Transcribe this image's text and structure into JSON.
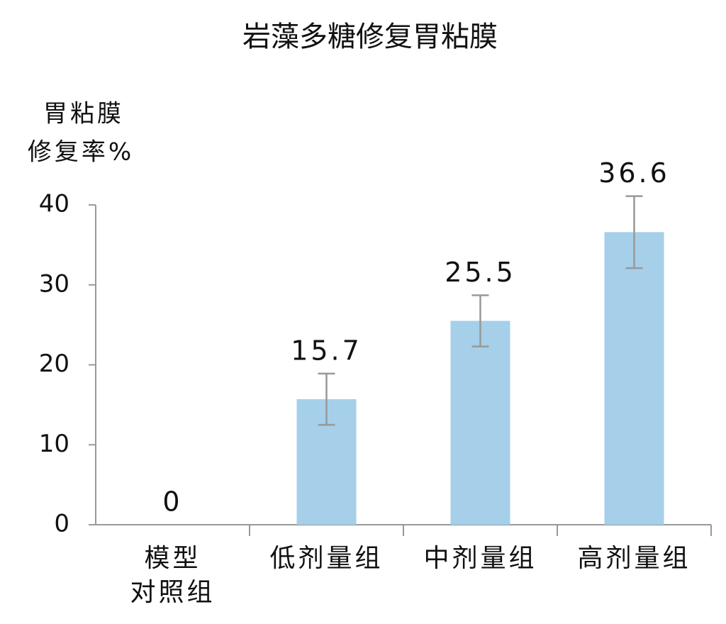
{
  "chart_data": {
    "type": "bar",
    "title": "岩藻多糖修复胃粘膜",
    "y_label": [
      "胃粘膜",
      "修复率%"
    ],
    "categories": [
      "模型\n对照组",
      "低剂量组",
      "中剂量组",
      "高剂量组"
    ],
    "values": [
      0,
      15.7,
      25.5,
      36.6
    ],
    "errors": [
      null,
      3.2,
      3.2,
      4.5
    ],
    "color": "#a6cfe9",
    "error_color": "#999999",
    "ylim": [
      0,
      40
    ],
    "yticks": [
      0,
      10,
      20,
      30,
      40
    ],
    "grid": false
  }
}
